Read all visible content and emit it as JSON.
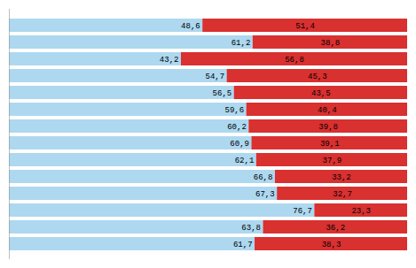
{
  "chart_data": {
    "type": "bar",
    "orientation": "horizontal",
    "stacked": true,
    "categories": [
      null,
      null,
      null,
      null,
      null,
      null,
      null,
      null,
      null,
      null,
      null,
      null,
      null,
      null
    ],
    "series": [
      {
        "color": "#add8f0",
        "values": [
          48.6,
          61.2,
          43.2,
          54.7,
          56.5,
          59.6,
          60.2,
          60.9,
          62.1,
          66.8,
          67.3,
          76.7,
          63.8,
          61.7
        ],
        "value_labels": [
          "48,6",
          "61,2",
          "43,2",
          "54,7",
          "56,5",
          "59,6",
          "60,2",
          "60,9",
          "62,1",
          "66,8",
          "67,3",
          "76,7",
          "63,8",
          "61,7"
        ]
      },
      {
        "color": "#d93030",
        "values": [
          51.4,
          38.8,
          56.8,
          45.3,
          43.5,
          40.4,
          39.8,
          39.1,
          37.9,
          33.2,
          32.7,
          23.3,
          36.2,
          38.3
        ],
        "value_labels": [
          "51,4",
          "38,8",
          "56,8",
          "45,3",
          "43,5",
          "40,4",
          "39,8",
          "39,1",
          "37,9",
          "33,2",
          "32,7",
          "23,3",
          "36,2",
          "38,3"
        ]
      }
    ],
    "xlim": [
      0,
      100
    ],
    "tick_labels": false,
    "grid": false,
    "data_labels": true
  }
}
